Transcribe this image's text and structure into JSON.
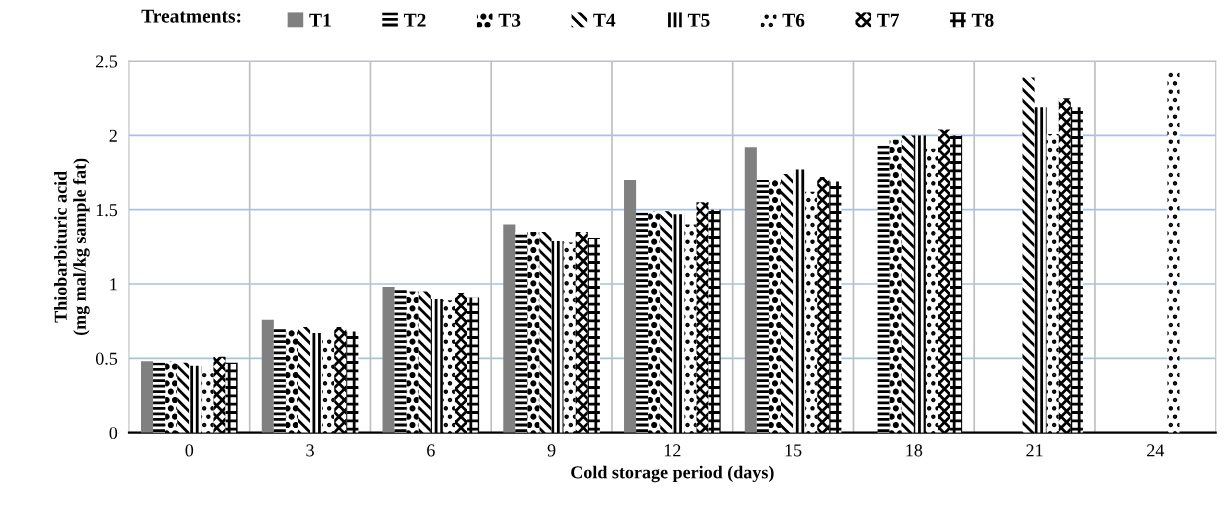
{
  "chart_data": {
    "type": "bar",
    "xlabel": "Cold storage period (days)",
    "ylabel": "Thiobarbituric acid\n(mg mal/kg sample fat)",
    "legend_title": "Treatments:",
    "categories": [
      "0",
      "3",
      "6",
      "9",
      "12",
      "15",
      "18",
      "21",
      "24"
    ],
    "series": [
      {
        "name": "T1",
        "color": "#808080",
        "values": [
          0.48,
          0.76,
          0.98,
          1.4,
          1.7,
          1.92,
          null,
          null,
          null
        ]
      },
      {
        "name": "T2",
        "color": "#000000",
        "values": [
          0.47,
          0.7,
          0.96,
          1.35,
          1.48,
          1.7,
          1.93,
          null,
          null
        ]
      },
      {
        "name": "T3",
        "color": "#000000",
        "values": [
          0.48,
          0.7,
          0.95,
          1.35,
          1.49,
          1.71,
          1.97,
          null,
          null
        ]
      },
      {
        "name": "T4",
        "color": "#000000",
        "values": [
          0.47,
          0.71,
          0.95,
          1.35,
          1.49,
          1.74,
          2.0,
          2.39,
          null
        ]
      },
      {
        "name": "T5",
        "color": "#000000",
        "values": [
          0.45,
          0.67,
          0.9,
          1.29,
          1.47,
          1.77,
          2.0,
          2.19,
          null
        ]
      },
      {
        "name": "T6",
        "color": "#000000",
        "values": [
          0.4,
          0.64,
          0.89,
          1.28,
          1.4,
          1.62,
          1.91,
          2.01,
          2.43
        ]
      },
      {
        "name": "T7",
        "color": "#000000",
        "values": [
          0.51,
          0.71,
          0.94,
          1.35,
          1.55,
          1.72,
          2.04,
          2.25,
          null
        ]
      },
      {
        "name": "T8",
        "color": "#000000",
        "values": [
          0.47,
          0.68,
          0.91,
          1.31,
          1.5,
          1.69,
          2.0,
          2.19,
          null
        ]
      }
    ],
    "ylim": [
      0,
      2.5
    ],
    "yticks": [
      0,
      0.5,
      1,
      1.5,
      2,
      2.5
    ],
    "grid": true,
    "legend": "top"
  }
}
